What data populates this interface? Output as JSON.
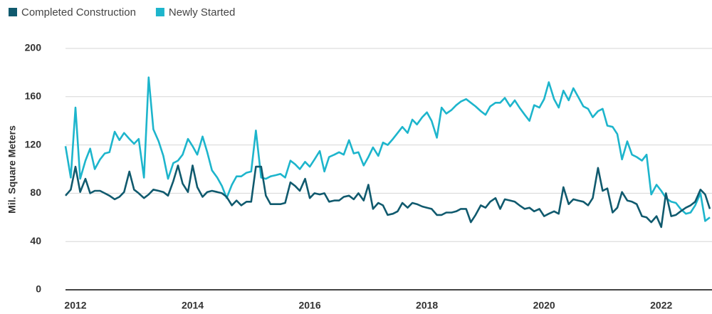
{
  "chart_data": {
    "type": "line",
    "y_label": "Mil. Square Meters",
    "x": [
      2011.83,
      2011.92,
      2012.0,
      2012.08,
      2012.17,
      2012.25,
      2012.33,
      2012.42,
      2012.5,
      2012.58,
      2012.67,
      2012.75,
      2012.83,
      2012.92,
      2013.0,
      2013.08,
      2013.17,
      2013.25,
      2013.33,
      2013.42,
      2013.5,
      2013.58,
      2013.67,
      2013.75,
      2013.83,
      2013.92,
      2014.0,
      2014.08,
      2014.17,
      2014.25,
      2014.33,
      2014.42,
      2014.5,
      2014.58,
      2014.67,
      2014.75,
      2014.83,
      2014.92,
      2015.0,
      2015.08,
      2015.17,
      2015.25,
      2015.33,
      2015.42,
      2015.5,
      2015.58,
      2015.67,
      2015.75,
      2015.83,
      2015.92,
      2016.0,
      2016.08,
      2016.17,
      2016.25,
      2016.33,
      2016.42,
      2016.5,
      2016.58,
      2016.67,
      2016.75,
      2016.83,
      2016.92,
      2017.0,
      2017.08,
      2017.17,
      2017.25,
      2017.33,
      2017.42,
      2017.5,
      2017.58,
      2017.67,
      2017.75,
      2017.83,
      2017.92,
      2018.0,
      2018.08,
      2018.17,
      2018.25,
      2018.33,
      2018.42,
      2018.5,
      2018.58,
      2018.67,
      2018.75,
      2018.83,
      2018.92,
      2019.0,
      2019.08,
      2019.17,
      2019.25,
      2019.33,
      2019.42,
      2019.5,
      2019.58,
      2019.67,
      2019.75,
      2019.83,
      2019.92,
      2020.0,
      2020.08,
      2020.17,
      2020.25,
      2020.33,
      2020.42,
      2020.5,
      2020.58,
      2020.67,
      2020.75,
      2020.83,
      2020.92,
      2021.0,
      2021.08,
      2021.17,
      2021.25,
      2021.33,
      2021.42,
      2021.5,
      2021.58,
      2021.67,
      2021.75,
      2021.83,
      2021.92,
      2022.0,
      2022.08,
      2022.17,
      2022.25,
      2022.33,
      2022.42,
      2022.5,
      2022.58,
      2022.67,
      2022.75,
      2022.83
    ],
    "series": [
      {
        "name": "Completed Construction",
        "color": "#105a6e",
        "values": [
          78,
          83,
          102,
          81,
          92,
          80,
          82,
          82,
          80,
          78,
          75,
          77,
          81,
          98,
          83,
          80,
          76,
          79,
          83,
          82,
          81,
          78,
          90,
          103,
          88,
          81,
          103,
          85,
          77,
          81,
          82,
          81,
          80,
          77,
          70,
          74,
          70,
          73,
          73,
          102,
          102,
          78,
          71,
          71,
          71,
          72,
          89,
          86,
          82,
          92,
          76,
          80,
          79,
          80,
          73,
          74,
          74,
          77,
          78,
          75,
          80,
          74,
          87,
          67,
          72,
          70,
          62,
          63,
          65,
          72,
          68,
          72,
          71,
          69,
          68,
          67,
          62,
          62,
          64,
          64,
          65,
          67,
          67,
          56,
          62,
          70,
          68,
          73,
          76,
          67,
          75,
          74,
          73,
          70,
          67,
          68,
          65,
          67,
          61,
          63,
          65,
          63,
          85,
          71,
          75,
          74,
          73,
          70,
          76,
          101,
          82,
          84,
          64,
          68,
          81,
          74,
          73,
          71,
          61,
          60,
          56,
          61,
          52,
          80,
          61,
          62,
          65,
          68,
          70,
          73,
          83,
          79,
          67
        ]
      },
      {
        "name": "Newly Started",
        "color": "#1db5cc",
        "values": [
          119,
          93,
          151,
          92,
          107,
          117,
          100,
          108,
          113,
          114,
          131,
          124,
          130,
          125,
          121,
          125,
          93,
          176,
          133,
          123,
          111,
          92,
          105,
          107,
          112,
          125,
          119,
          112,
          127,
          114,
          99,
          93,
          86,
          76,
          87,
          94,
          94,
          97,
          98,
          132,
          93,
          92,
          94,
          95,
          96,
          93,
          107,
          104,
          100,
          106,
          102,
          108,
          115,
          98,
          110,
          112,
          114,
          112,
          124,
          113,
          114,
          103,
          110,
          118,
          111,
          122,
          120,
          125,
          130,
          135,
          130,
          141,
          137,
          143,
          147,
          140,
          126,
          151,
          146,
          149,
          153,
          156,
          158,
          155,
          152,
          148,
          145,
          152,
          155,
          155,
          159,
          152,
          157,
          151,
          145,
          140,
          153,
          151,
          158,
          172,
          158,
          151,
          165,
          157,
          167,
          160,
          152,
          150,
          143,
          148,
          150,
          136,
          135,
          129,
          108,
          123,
          112,
          110,
          107,
          112,
          79,
          87,
          82,
          76,
          73,
          72,
          67,
          63,
          64,
          70,
          80,
          57,
          60
        ]
      }
    ],
    "xlim": [
      2011.83,
      2022.83
    ],
    "xticks": [
      2012,
      2014,
      2016,
      2018,
      2020,
      2022
    ],
    "ylim": [
      0,
      200
    ],
    "yticks": [
      0,
      40,
      80,
      120,
      160,
      200
    ],
    "grid": true,
    "legend": "top-left"
  }
}
